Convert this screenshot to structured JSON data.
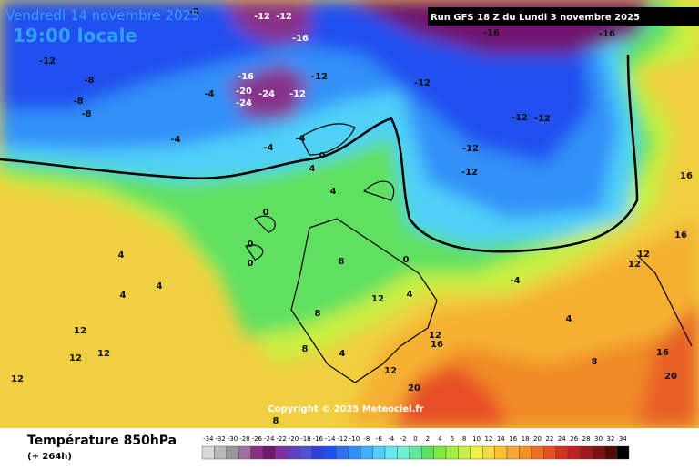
{
  "header": {
    "date": "Vendredi 14 novembre 2025",
    "time": "19:00 locale",
    "run": "Run GFS 18 Z du Lundi 3 novembre 2025"
  },
  "footer": {
    "title": "Température 850hPa",
    "lead": "(+ 264h)",
    "copyright": "Copyright © 2025 Meteociel.fr"
  },
  "legend": {
    "ticks": [
      -34,
      -32,
      -30,
      -28,
      -26,
      -24,
      -22,
      -20,
      -18,
      -16,
      -14,
      -12,
      -10,
      -8,
      -6,
      -4,
      -2,
      0,
      2,
      4,
      6,
      8,
      10,
      12,
      14,
      16,
      18,
      20,
      22,
      24,
      26,
      28,
      30,
      32,
      34
    ],
    "colors": [
      "#d8d8d8",
      "#b8b8b8",
      "#989898",
      "#a070a0",
      "#883088",
      "#701870",
      "#8030a0",
      "#6040c0",
      "#5050d8",
      "#3040e0",
      "#2050f0",
      "#3070f0",
      "#3090f8",
      "#40b0f8",
      "#50d0f8",
      "#60e8f0",
      "#70f0d0",
      "#60e8a0",
      "#60e060",
      "#80e840",
      "#a0f040",
      "#c8f040",
      "#f0f040",
      "#f8d840",
      "#f8c030",
      "#f8a830",
      "#f89020",
      "#f07020",
      "#e85020",
      "#d83020",
      "#c02020",
      "#a01818",
      "#801010",
      "#500808",
      "#000000"
    ]
  },
  "map_labels": [
    "-8",
    "-12",
    "-12",
    "-16",
    "-12",
    "-8",
    "-8",
    "-8",
    "-4",
    "-4",
    "-16",
    "-20",
    "-24",
    "-24",
    "-12",
    "-12",
    "-12",
    "-16",
    "-16",
    "-12",
    "-12",
    "-12",
    "-12",
    "-4",
    "-4",
    "0",
    "4",
    "4",
    "0",
    "0",
    "0",
    "4",
    "4",
    "4",
    "8",
    "0",
    "12",
    "4",
    "8",
    "12",
    "12",
    "12",
    "12",
    "8",
    "4",
    "12",
    "12",
    "16",
    "20",
    "8",
    "16",
    "16",
    "12",
    "12",
    "-4",
    "4",
    "8",
    "16",
    "20"
  ]
}
